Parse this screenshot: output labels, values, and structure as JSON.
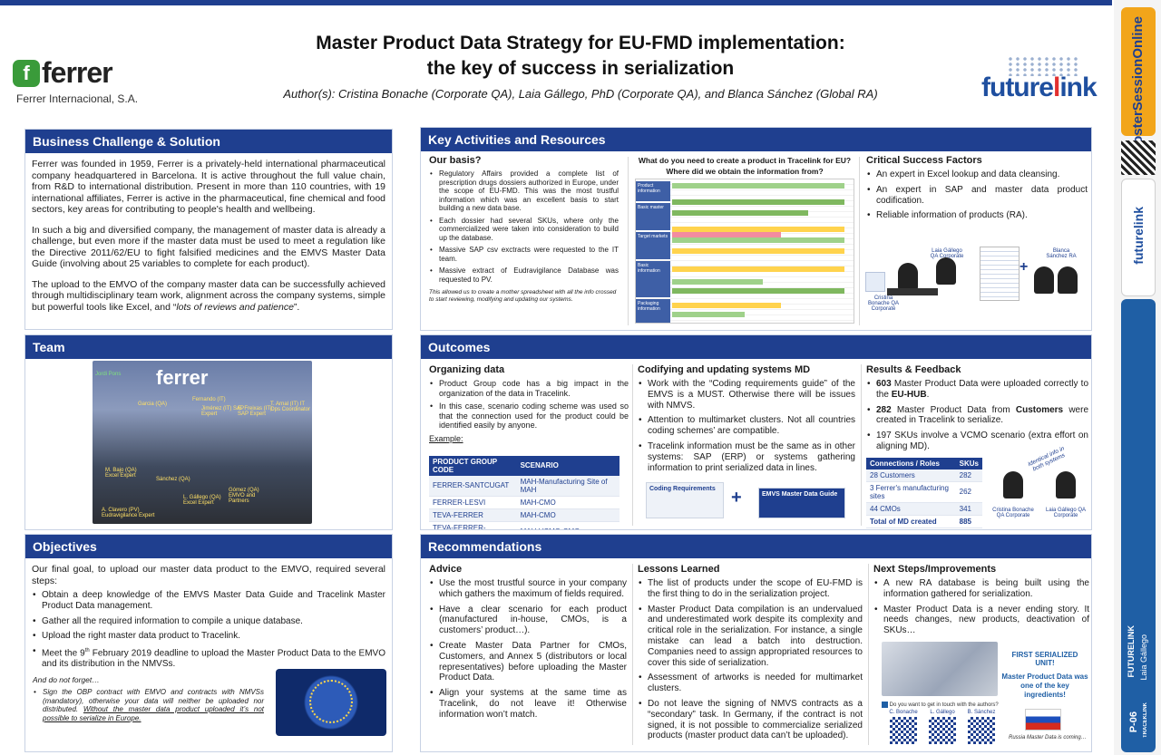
{
  "title_line1": "Master Product Data Strategy for EU-FMD implementation:",
  "title_line2": "the key of success in serialization",
  "authors": "Author(s): Cristina Bonache (Corporate QA), Laia Gállego, PhD (Corporate QA), and Blanca Sánchez (Global RA)",
  "logo_left": {
    "mark": "f",
    "word": "ferrer",
    "sub": "Ferrer Internacional, S.A."
  },
  "logo_right": {
    "pre": "future",
    "hl": "l",
    "post": "ink"
  },
  "sidebar": {
    "brand": "PosterSessionOnline",
    "futurelink": "futurelink",
    "company": "FUTURELINK",
    "author": "Laia Gállego",
    "code": "P-06",
    "track": "TRACEKLINK"
  },
  "business": {
    "header": "Business Challenge & Solution",
    "p1": "Ferrer was founded in 1959, Ferrer is a privately-held international pharmaceutical company headquartered in Barcelona. It is active throughout the full value chain, from R&D to international distribution. Present in more than 110 countries, with 19 international affiliates, Ferrer is active in the pharmaceutical, fine chemical and food sectors, key areas for contributing to people's health and wellbeing.",
    "p2": "In such a big and diversified company, the management of master data is already a challenge, but even more if the master data must be used to meet a regulation like the Directive 2011/62/EU to fight falsified medicines and the EMVS Master Data Guide (involving about 25 variables to complete for each product).",
    "p3_pre": "The upload to the EMVO of the company master data can be successfully achieved through multidisciplinary team work, alignment across the company systems, simple but powerful tools like Excel, and “",
    "p3_it": "lots of reviews and patience",
    "p3_post": "”."
  },
  "team": {
    "header": "Team",
    "label": "ferrer",
    "names": [
      "Jordi Pons",
      "Fernando (IT)",
      "Jiménez (IT) SAP Expert",
      "Garcia (QA)",
      "E. Freixas (IT) SAP Expert",
      "T. Arnal (IT) IT Ops Coordinator",
      "M. Bajo (QA) Excel Expert",
      "Sánchez (QA)",
      "Gómez (QA) EMVO and Partners",
      "L. Gállego (QA) Excel Expert",
      "A. Clavero (PV) Eudravigilance Expert"
    ]
  },
  "objectives": {
    "header": "Objectives",
    "intro": "Our final goal, to upload our master data product to the EMVO, required several steps:",
    "items": [
      "Obtain a deep knowledge of the EMVS Master Data Guide and Tracelink Master Product Data management.",
      "Gather all the required information to compile a unique database.",
      "Upload the right master data product to Tracelink."
    ],
    "deadline_pre": "Meet the 9",
    "deadline_sup": "th",
    "deadline_post": " February 2019 deadline to upload the Master Product Data to the EMVO and its distribution in the NMVSs.",
    "forget_title": "And do not forget…",
    "forget_text": "Sign the OBP contract with EMVO and contracts with NMVSs (mandatory), otherwise your data will neither be uploaded nor distributed. ",
    "forget_under": "Without the master data product uploaded it’s not possible to serialize in Europe."
  },
  "key_activities": {
    "header": "Key Activities and Resources",
    "basis_title": "Our basis?",
    "basis_items": [
      "Regulatory Affairs provided a complete list of prescription drugs dossiers authorized in Europe, under the scope of EU-FMD. This was the most trustful information which was an excellent basis to start building a new data base.",
      "Each dossier had several SKUs, where only the commercialized were taken into consideration to build up the database.",
      "Massive SAP csv exctracts were requested to the IT team.",
      "Massive extract of Eudravigilance Database was requested to PV."
    ],
    "basis_note": "This allowed us to create a mother spreadsheet with all the info crossed to start reviewing, modifying and updating our systems.",
    "question1": "What do you need to create a product in Tracelink for EU?",
    "question2": "Where did we obtain the information from?",
    "spread_groups": [
      "Product information",
      "Basic master",
      "Target markets",
      "Basic information",
      "Packaging information"
    ],
    "csf_title": "Critical Success Factors",
    "csf_items": [
      "An expert in Excel lookup and data cleansing.",
      "An expert in SAP and master data product codification.",
      "Reliable information of products (RA)."
    ],
    "csf_captions": [
      "Cristina Bonache QA Corporate",
      "Laia Gállego QA Corporate",
      "Blanca Sánchez RA"
    ]
  },
  "outcomes": {
    "header": "Outcomes",
    "org_title": "Organizing data",
    "org_items": [
      "Product Group code has a big impact in the organization of the data in Tracelink.",
      "In this case, scenario coding scheme was used so that the connection used for the product could be identified easily by anyone."
    ],
    "example": "Example:",
    "scen_headers": [
      "PRODUCT GROUP CODE",
      "SCENARIO"
    ],
    "scen_rows": [
      [
        "FERRER-SANTCUGAT",
        "MAH-Manufacturing Site of MAH"
      ],
      [
        "FERRER-LESVI",
        "MAH-CMO"
      ],
      [
        "TEVA-FERRER",
        "MAH-CMO"
      ],
      [
        "TEVA-FERRER-NORMON",
        "MAH-VCMO-CMO"
      ]
    ],
    "cod_title": "Codifying and updating systems MD",
    "cod_items": [
      "Work with the “Coding requirements guide” of the EMVS is a MUST. Otherwise there will be issues with NMVS.",
      "Attention to multimarket clusters. Not all countries coding schemes’ are compatible.",
      "Tracelink information must be the same as in other systems: SAP (ERP) or systems gathering information to print serialized data in lines."
    ],
    "doc1": "Coding Requirements",
    "doc2": "EMVS Master Data Guide",
    "plus": "+",
    "res_title": "Results & Feedback",
    "res1_num": "603",
    "res1_pre": " Master Product Data were uploaded correctly to the ",
    "res1_bold": "EU-HUB",
    "res1_post": ".",
    "res2_num": "282",
    "res2_pre": " Master Product Data from ",
    "res2_bold": "Customers",
    "res2_post": " were created in Tracelink to serialize.",
    "res3": "197 SKUs involve a VCMO scenario (extra effort on aligning MD).",
    "conn_headers": [
      "Connections / Roles",
      "SKUs"
    ],
    "conn_rows": [
      [
        "28 Customers",
        "282"
      ],
      [
        "3 Ferrer's manufacturing sites",
        "262"
      ],
      [
        "44 CMOs",
        "341"
      ]
    ],
    "conn_total": [
      "Total of MD created",
      "885"
    ],
    "bubble": "Identical info in both systems",
    "captions": [
      "Cristina Bonache QA Corporate",
      "Laia Gállego QA Corporate"
    ]
  },
  "recommendations": {
    "header": "Recommendations",
    "advice_title": "Advice",
    "advice_items": [
      "Use the most trustful source in your company which gathers the maximum of fields required.",
      "Have a clear scenario for each product (manufactured in-house, CMOs, is a customers’ product…).",
      "Create Master Data Partner for CMOs, Customers, and Annex 5 (distributors or local representatives) before uploading the Master Product Data.",
      "Align your systems at the same time as Tracelink, do not leave it! Otherwise information won’t match."
    ],
    "lessons_title": "Lessons Learned",
    "lessons_items": [
      "The list of products under the scope of EU-FMD is the first thing to do in the serialization project.",
      "Master Product Data compilation is an undervalued and underestimated work despite its complexity and critical role in the serialization. For instance, a single mistake can lead a batch into destruction. Companies need to assign appropriated resources to cover this side of serialization.",
      "Assessment of artworks is needed for multimarket clusters.",
      "Do not leave the signing of NMVS contracts as a “secondary” task. In Germany, if the contract is not signed, it is not possible to commercialize serialized products (master product data can’t be uploaded)."
    ],
    "next_title": "Next Steps/Improvements",
    "next_items": [
      "A new RA database is being built using the information gathered for serialization.",
      "Master Product Data is a never ending story. It needs changes, new products, deactivation of SKUs…"
    ],
    "unit_title": "FIRST SERIALIZED UNIT!",
    "unit_text": "Master Product Data was one of the key ingredients!",
    "contact": "Do you want to get in touch with the authors?",
    "contact_names": [
      "C. Bonache",
      "L. Gállego",
      "B. Sánchez"
    ],
    "russia": "Russia Master Data is coming…"
  }
}
